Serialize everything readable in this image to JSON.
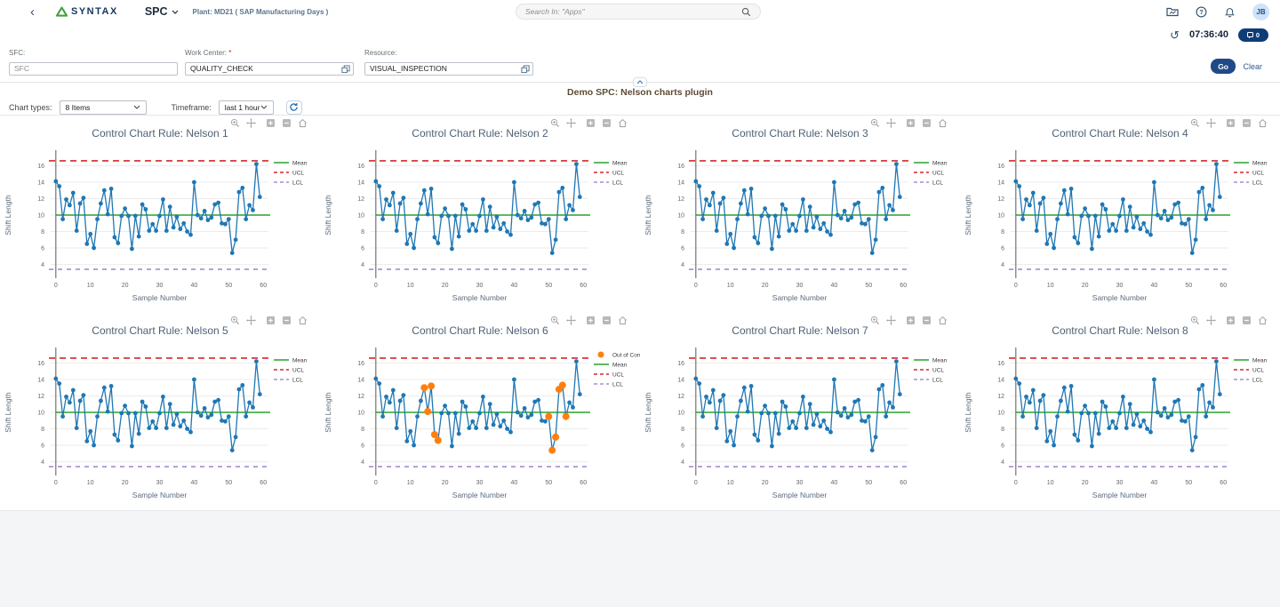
{
  "header": {
    "back_label": "‹",
    "brand": "SYNTAX",
    "app_menu": "SPC",
    "plant": "Plant: MD21 ( SAP Manufacturing Days )",
    "search": {
      "placeholder": "Search In: \"Apps\""
    },
    "avatar_initials": "JB",
    "time": "07:36:40",
    "badge_count": "0"
  },
  "filters": {
    "sfc": {
      "label": "SFC:",
      "placeholder": "SFC"
    },
    "work_center": {
      "label": "Work Center:",
      "required_mark": "*",
      "value": "QUALITY_CHECK"
    },
    "resource": {
      "label": "Resource:",
      "value": "VISUAL_INSPECTION"
    },
    "go_label": "Go",
    "clear_label": "Clear"
  },
  "plugin": {
    "title": "Demo SPC: Nelson charts plugin",
    "chart_types_label": "Chart types:",
    "chart_types_value": "8 Items",
    "timeframe_label": "Timeframe:",
    "timeframe_value": "last 1 hour"
  },
  "icons": {
    "header": [
      "back-icon",
      "syntax-logo-triangle",
      "chevron-down-icon",
      "search-icon",
      "folder-icon",
      "help-icon",
      "bell-icon",
      "history-icon",
      "message-badge-icon"
    ],
    "inputs": [
      "value-help-icon"
    ],
    "controls": [
      "refresh-icon",
      "collapse-icon"
    ],
    "chart_toolbar": [
      "zoom-icon",
      "pan-icon",
      "zoom-in-icon",
      "zoom-out-icon",
      "home-icon"
    ]
  },
  "chart_data": {
    "type": "line",
    "xlabel": "Sample Number",
    "ylabel": "Shift Length",
    "xticks": [
      0,
      10,
      20,
      30,
      40,
      50,
      60
    ],
    "yticks": [
      4,
      6,
      8,
      10,
      12,
      14,
      16
    ],
    "xlim": [
      -1.5,
      61.5
    ],
    "ylim": [
      2.55,
      17.45
    ],
    "grid": "horizontal",
    "legend_position": "right",
    "mean": 10,
    "ucl": 16.6,
    "lcl": 3.4,
    "legend": {
      "out": "Out of Control",
      "mean": "Mean",
      "ucl": "UCL",
      "lcl": "LCL"
    },
    "colors": {
      "series": "#1f77b4",
      "mean": "#2ca02c",
      "ucl": "#d62728",
      "lcl": "#a88bd4",
      "out": "#ff7f0e",
      "title": "#4e6175"
    },
    "x": [
      0,
      1,
      2,
      3,
      4,
      5,
      6,
      7,
      8,
      9,
      10,
      11,
      12,
      13,
      14,
      15,
      16,
      17,
      18,
      19,
      20,
      21,
      22,
      23,
      24,
      25,
      26,
      27,
      28,
      29,
      30,
      31,
      32,
      33,
      34,
      35,
      36,
      37,
      38,
      39,
      40,
      41,
      42,
      43,
      44,
      45,
      46,
      47,
      48,
      49,
      50,
      51,
      52,
      53,
      54,
      55,
      56,
      57,
      58,
      59
    ],
    "values": [
      14.1,
      13.5,
      9.5,
      11.9,
      11.2,
      12.7,
      8.1,
      11.4,
      12.1,
      6.5,
      7.7,
      6.0,
      9.5,
      11.4,
      13.0,
      10.1,
      13.2,
      7.3,
      6.6,
      9.9,
      10.8,
      9.9,
      5.9,
      9.9,
      7.4,
      11.3,
      10.7,
      8.1,
      8.9,
      8.1,
      9.9,
      11.9,
      8.1,
      11.0,
      8.5,
      9.8,
      8.3,
      9.0,
      8.0,
      7.6,
      14.0,
      10.0,
      9.6,
      10.5,
      9.4,
      9.7,
      11.3,
      11.5,
      9.0,
      8.9,
      9.5,
      5.4,
      7.0,
      12.8,
      13.3,
      9.5,
      11.2,
      10.6,
      16.2,
      12.2
    ],
    "out_of_control_indices": [
      14,
      15,
      16,
      17,
      18,
      50,
      51,
      52,
      53,
      54,
      55
    ],
    "charts": [
      {
        "title": "Control Chart Rule: Nelson 1",
        "has_out_of_control": false
      },
      {
        "title": "Control Chart Rule: Nelson 2",
        "has_out_of_control": false
      },
      {
        "title": "Control Chart Rule: Nelson 3",
        "has_out_of_control": false
      },
      {
        "title": "Control Chart Rule: Nelson 4",
        "has_out_of_control": false
      },
      {
        "title": "Control Chart Rule: Nelson 5",
        "has_out_of_control": false
      },
      {
        "title": "Control Chart Rule: Nelson 6",
        "has_out_of_control": true
      },
      {
        "title": "Control Chart Rule: Nelson 7",
        "has_out_of_control": false
      },
      {
        "title": "Control Chart Rule: Nelson 8",
        "has_out_of_control": false
      }
    ]
  }
}
